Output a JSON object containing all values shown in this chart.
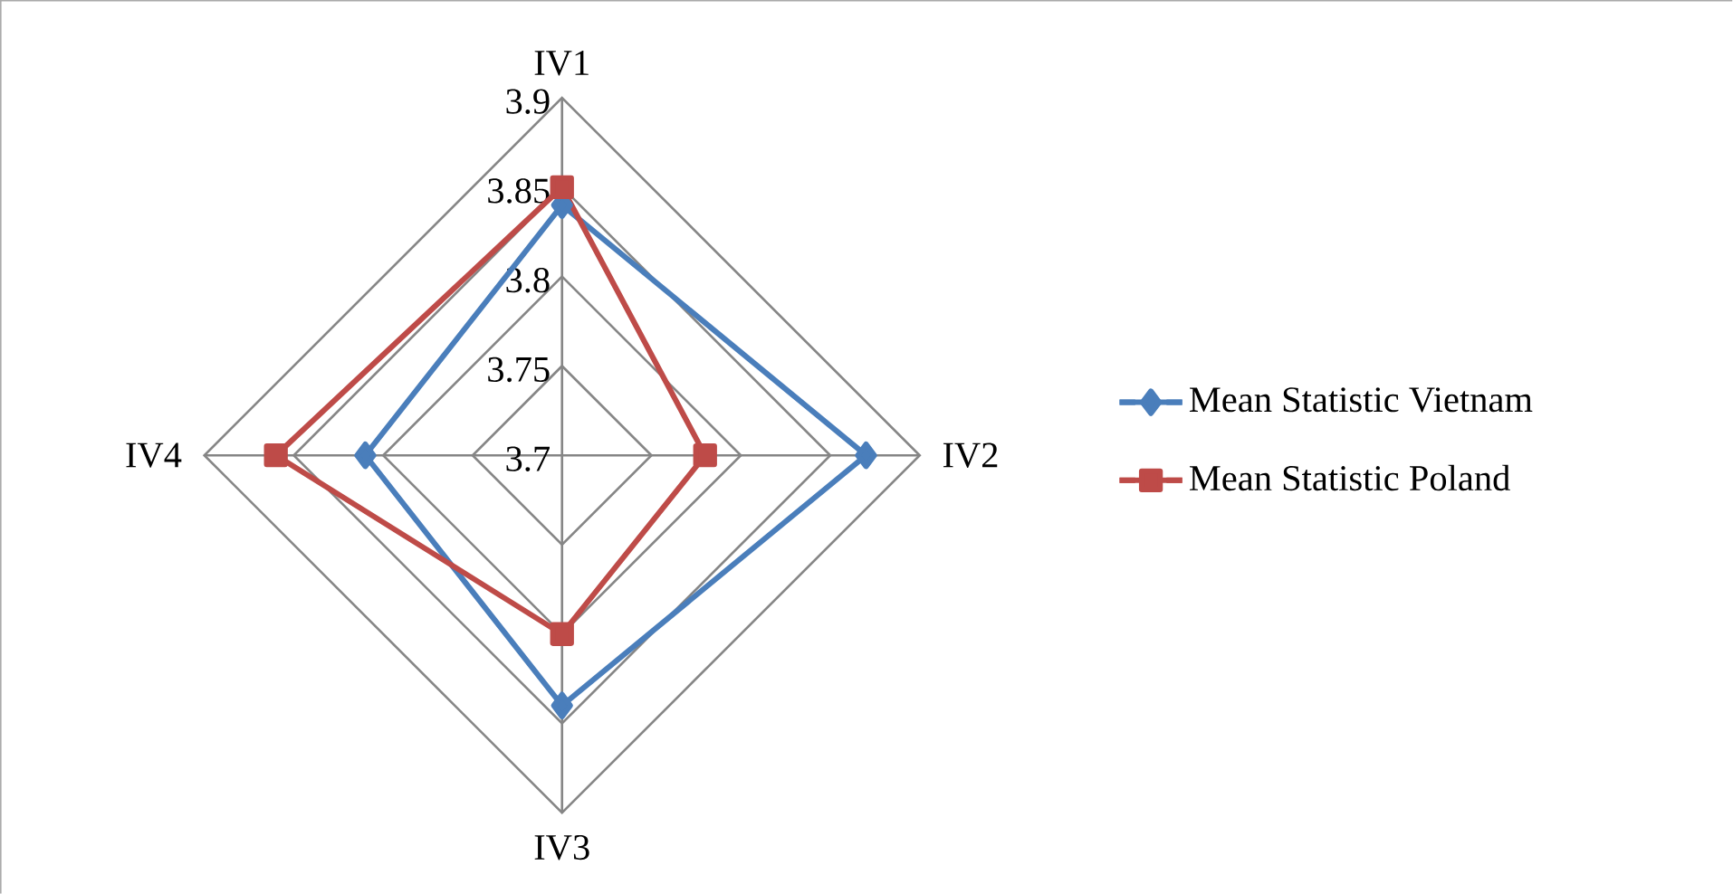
{
  "chart_data": {
    "type": "radar",
    "categories": [
      "IV1",
      "IV2",
      "IV3",
      "IV4"
    ],
    "series": [
      {
        "name": "Mean Statistic Vietnam",
        "color": "#4a7ebb",
        "marker": "diamond",
        "values": [
          3.84,
          3.87,
          3.84,
          3.81
        ]
      },
      {
        "name": "Mean Statistic Poland",
        "color": "#be4b48",
        "marker": "square",
        "values": [
          3.85,
          3.78,
          3.8,
          3.86
        ]
      }
    ],
    "ylim": [
      3.7,
      3.9
    ],
    "yticks": [
      3.7,
      3.75,
      3.8,
      3.85,
      3.9
    ],
    "grid": true,
    "legend": "right"
  }
}
